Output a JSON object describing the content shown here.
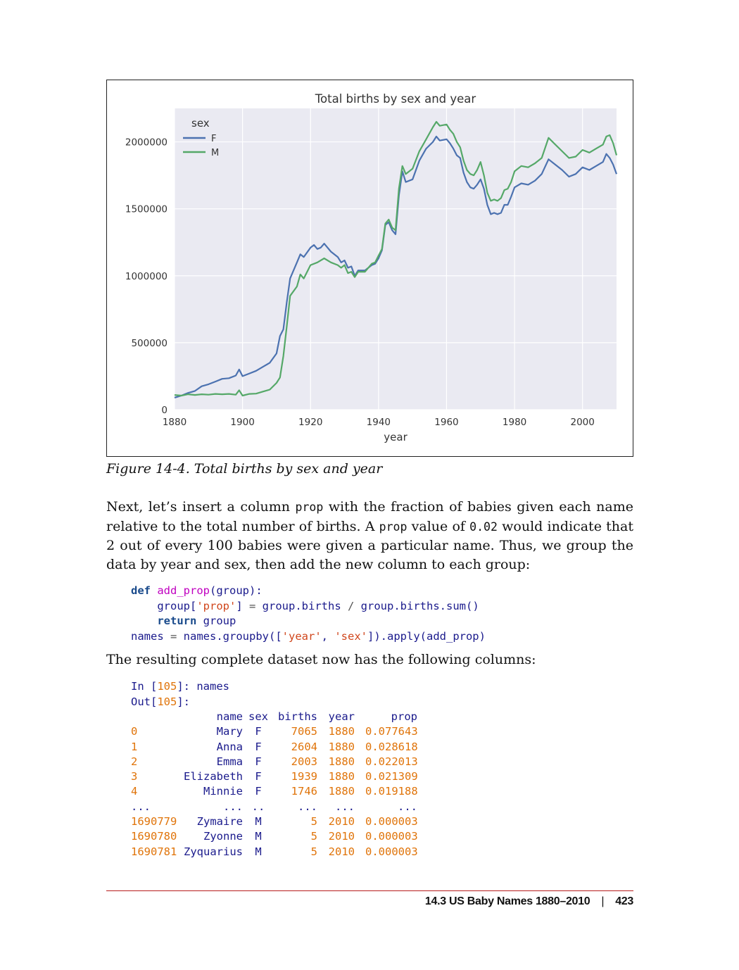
{
  "chart_data": {
    "type": "line",
    "title": "Total births by sex and year",
    "xlabel": "year",
    "ylabel": "",
    "xlim": [
      1880,
      2010
    ],
    "ylim": [
      0,
      2250000
    ],
    "x_ticks": [
      "1880",
      "1900",
      "1920",
      "1940",
      "1960",
      "1980",
      "2000"
    ],
    "y_ticks": [
      "0",
      "500000",
      "1000000",
      "1500000",
      "2000000"
    ],
    "legend_title": "sex",
    "legend_position": "top-left",
    "grid": true,
    "series": [
      {
        "name": "F",
        "color": "#4c72b0",
        "points": [
          [
            1880,
            90000
          ],
          [
            1882,
            105000
          ],
          [
            1884,
            125000
          ],
          [
            1886,
            140000
          ],
          [
            1888,
            175000
          ],
          [
            1890,
            190000
          ],
          [
            1892,
            210000
          ],
          [
            1894,
            230000
          ],
          [
            1896,
            235000
          ],
          [
            1898,
            255000
          ],
          [
            1899,
            300000
          ],
          [
            1900,
            250000
          ],
          [
            1902,
            270000
          ],
          [
            1904,
            290000
          ],
          [
            1906,
            320000
          ],
          [
            1908,
            350000
          ],
          [
            1910,
            420000
          ],
          [
            1911,
            550000
          ],
          [
            1912,
            600000
          ],
          [
            1913,
            800000
          ],
          [
            1914,
            980000
          ],
          [
            1916,
            1100000
          ],
          [
            1917,
            1160000
          ],
          [
            1918,
            1140000
          ],
          [
            1920,
            1210000
          ],
          [
            1921,
            1230000
          ],
          [
            1922,
            1200000
          ],
          [
            1923,
            1210000
          ],
          [
            1924,
            1240000
          ],
          [
            1926,
            1180000
          ],
          [
            1928,
            1140000
          ],
          [
            1929,
            1100000
          ],
          [
            1930,
            1115000
          ],
          [
            1931,
            1060000
          ],
          [
            1932,
            1070000
          ],
          [
            1933,
            1000000
          ],
          [
            1934,
            1040000
          ],
          [
            1936,
            1040000
          ],
          [
            1938,
            1080000
          ],
          [
            1939,
            1090000
          ],
          [
            1940,
            1130000
          ],
          [
            1941,
            1190000
          ],
          [
            1942,
            1380000
          ],
          [
            1943,
            1400000
          ],
          [
            1944,
            1340000
          ],
          [
            1945,
            1310000
          ],
          [
            1946,
            1600000
          ],
          [
            1947,
            1780000
          ],
          [
            1948,
            1700000
          ],
          [
            1950,
            1720000
          ],
          [
            1952,
            1860000
          ],
          [
            1954,
            1950000
          ],
          [
            1956,
            2000000
          ],
          [
            1957,
            2040000
          ],
          [
            1958,
            2010000
          ],
          [
            1960,
            2020000
          ],
          [
            1961,
            1990000
          ],
          [
            1962,
            1950000
          ],
          [
            1963,
            1900000
          ],
          [
            1964,
            1880000
          ],
          [
            1965,
            1770000
          ],
          [
            1966,
            1700000
          ],
          [
            1967,
            1660000
          ],
          [
            1968,
            1650000
          ],
          [
            1969,
            1680000
          ],
          [
            1970,
            1720000
          ],
          [
            1971,
            1650000
          ],
          [
            1972,
            1530000
          ],
          [
            1973,
            1460000
          ],
          [
            1974,
            1470000
          ],
          [
            1975,
            1460000
          ],
          [
            1976,
            1470000
          ],
          [
            1977,
            1530000
          ],
          [
            1978,
            1530000
          ],
          [
            1979,
            1590000
          ],
          [
            1980,
            1660000
          ],
          [
            1982,
            1690000
          ],
          [
            1984,
            1680000
          ],
          [
            1986,
            1710000
          ],
          [
            1988,
            1760000
          ],
          [
            1990,
            1870000
          ],
          [
            1992,
            1830000
          ],
          [
            1994,
            1790000
          ],
          [
            1996,
            1740000
          ],
          [
            1998,
            1760000
          ],
          [
            2000,
            1810000
          ],
          [
            2002,
            1790000
          ],
          [
            2004,
            1820000
          ],
          [
            2006,
            1850000
          ],
          [
            2007,
            1910000
          ],
          [
            2008,
            1880000
          ],
          [
            2009,
            1830000
          ],
          [
            2010,
            1760000
          ]
        ]
      },
      {
        "name": "M",
        "color": "#55a868",
        "points": [
          [
            1880,
            110000
          ],
          [
            1882,
            105000
          ],
          [
            1884,
            115000
          ],
          [
            1886,
            110000
          ],
          [
            1888,
            115000
          ],
          [
            1890,
            112000
          ],
          [
            1892,
            118000
          ],
          [
            1894,
            115000
          ],
          [
            1896,
            118000
          ],
          [
            1898,
            112000
          ],
          [
            1899,
            145000
          ],
          [
            1900,
            105000
          ],
          [
            1902,
            118000
          ],
          [
            1904,
            120000
          ],
          [
            1906,
            135000
          ],
          [
            1908,
            150000
          ],
          [
            1910,
            200000
          ],
          [
            1911,
            240000
          ],
          [
            1912,
            400000
          ],
          [
            1913,
            620000
          ],
          [
            1914,
            850000
          ],
          [
            1916,
            920000
          ],
          [
            1917,
            1010000
          ],
          [
            1918,
            980000
          ],
          [
            1920,
            1080000
          ],
          [
            1922,
            1100000
          ],
          [
            1924,
            1130000
          ],
          [
            1926,
            1100000
          ],
          [
            1928,
            1080000
          ],
          [
            1929,
            1060000
          ],
          [
            1930,
            1080000
          ],
          [
            1931,
            1020000
          ],
          [
            1932,
            1030000
          ],
          [
            1933,
            990000
          ],
          [
            1934,
            1030000
          ],
          [
            1936,
            1030000
          ],
          [
            1938,
            1090000
          ],
          [
            1939,
            1100000
          ],
          [
            1940,
            1150000
          ],
          [
            1941,
            1200000
          ],
          [
            1942,
            1390000
          ],
          [
            1943,
            1420000
          ],
          [
            1944,
            1360000
          ],
          [
            1945,
            1340000
          ],
          [
            1946,
            1650000
          ],
          [
            1947,
            1820000
          ],
          [
            1948,
            1760000
          ],
          [
            1950,
            1800000
          ],
          [
            1952,
            1930000
          ],
          [
            1954,
            2020000
          ],
          [
            1956,
            2110000
          ],
          [
            1957,
            2150000
          ],
          [
            1958,
            2120000
          ],
          [
            1960,
            2130000
          ],
          [
            1961,
            2090000
          ],
          [
            1962,
            2060000
          ],
          [
            1963,
            2000000
          ],
          [
            1964,
            1960000
          ],
          [
            1965,
            1860000
          ],
          [
            1966,
            1790000
          ],
          [
            1967,
            1760000
          ],
          [
            1968,
            1750000
          ],
          [
            1969,
            1790000
          ],
          [
            1970,
            1850000
          ],
          [
            1971,
            1750000
          ],
          [
            1972,
            1620000
          ],
          [
            1973,
            1560000
          ],
          [
            1974,
            1570000
          ],
          [
            1975,
            1560000
          ],
          [
            1976,
            1580000
          ],
          [
            1977,
            1640000
          ],
          [
            1978,
            1650000
          ],
          [
            1979,
            1700000
          ],
          [
            1980,
            1780000
          ],
          [
            1982,
            1820000
          ],
          [
            1984,
            1810000
          ],
          [
            1986,
            1840000
          ],
          [
            1988,
            1880000
          ],
          [
            1990,
            2030000
          ],
          [
            1992,
            1980000
          ],
          [
            1994,
            1930000
          ],
          [
            1996,
            1880000
          ],
          [
            1998,
            1890000
          ],
          [
            2000,
            1940000
          ],
          [
            2002,
            1920000
          ],
          [
            2004,
            1950000
          ],
          [
            2006,
            1980000
          ],
          [
            2007,
            2040000
          ],
          [
            2008,
            2050000
          ],
          [
            2009,
            1990000
          ],
          [
            2010,
            1900000
          ]
        ]
      }
    ]
  },
  "caption": "Figure 14-4. Total births by sex and year",
  "para1": {
    "t1": "Next, let’s insert a column ",
    "c1": "prop",
    "t2": " with the fraction of babies given each name relative to the total number of births. A ",
    "c2": "prop",
    "t3": " value of ",
    "c3": "0.02",
    "t4": " would indicate that 2 out of every 100 babies were given a particular name. Thus, we group the data by year and sex, then add the new column to each group:"
  },
  "code": {
    "def_kw": "def",
    "fn_name": "add_prop",
    "sig_rest": "(group):",
    "l2_indent": "    ",
    "l2_a": "group[",
    "l2_str": "'prop'",
    "l2_b": "] ",
    "l2_eq": "=",
    "l2_c": " group.births ",
    "l2_div": "/",
    "l2_d": " group.births.sum()",
    "l3_indent": "    ",
    "return_kw": "return",
    "l3_rest": " group",
    "l4_a": "names ",
    "l4_eq": "=",
    "l4_b": " names.groupby([",
    "l4_s1": "'year'",
    "l4_c": ", ",
    "l4_s2": "'sex'",
    "l4_d": "]).apply(add_prop)"
  },
  "para2": "The resulting complete dataset now has the following columns:",
  "ipy": {
    "in_a": "In [",
    "in_num": "105",
    "in_b": "]: names",
    "out_a": "Out[",
    "out_num": "105",
    "out_b": "]:"
  },
  "table": {
    "headers": [
      "name",
      "sex",
      "births",
      "year",
      "prop"
    ],
    "rows": [
      [
        "0",
        "Mary",
        "F",
        "7065",
        "1880",
        "0.077643"
      ],
      [
        "1",
        "Anna",
        "F",
        "2604",
        "1880",
        "0.028618"
      ],
      [
        "2",
        "Emma",
        "F",
        "2003",
        "1880",
        "0.022013"
      ],
      [
        "3",
        "Elizabeth",
        "F",
        "1939",
        "1880",
        "0.021309"
      ],
      [
        "4",
        "Minnie",
        "F",
        "1746",
        "1880",
        "0.019188"
      ],
      [
        "...",
        "...",
        "..",
        "...",
        "...",
        "..."
      ],
      [
        "1690779",
        "Zymaire",
        "M",
        "5",
        "2010",
        "0.000003"
      ],
      [
        "1690780",
        "Zyonne",
        "M",
        "5",
        "2010",
        "0.000003"
      ],
      [
        "1690781",
        "Zyquarius",
        "M",
        "5",
        "2010",
        "0.000003"
      ]
    ]
  },
  "footer": {
    "section": "14.3 US Baby Names 1880–2010",
    "separator": "|",
    "page": "423"
  }
}
